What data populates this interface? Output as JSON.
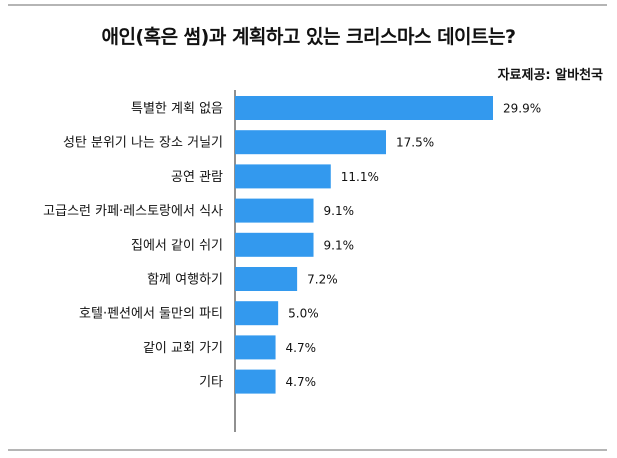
{
  "title": "애인(혹은 썸)과 계획하고 있는 크리스마스 데이트는?",
  "source": "자료제공: 알바천국",
  "chart_data": {
    "type": "bar",
    "orientation": "horizontal",
    "categories": [
      "특별한 계획 없음",
      "성탄 분위기 나는 장소 거닐기",
      "공연 관람",
      "고급스런 카페·레스토랑에서 식사",
      "집에서 같이 쉬기",
      "함께 여행하기",
      "호텔·펜션에서 둘만의 파티",
      "같이 교회 가기",
      "기타"
    ],
    "values": [
      29.9,
      17.5,
      11.1,
      9.1,
      9.1,
      7.2,
      5.0,
      4.7,
      4.7
    ],
    "value_labels": [
      "29.9%",
      "17.5%",
      "11.1%",
      "9.1%",
      "9.1%",
      "7.2%",
      "5.0%",
      "4.7%",
      "4.7%"
    ],
    "unit": "%",
    "xlim": [
      0,
      31
    ],
    "bar_color": "#3399ee",
    "grid": false,
    "legend": "none"
  }
}
